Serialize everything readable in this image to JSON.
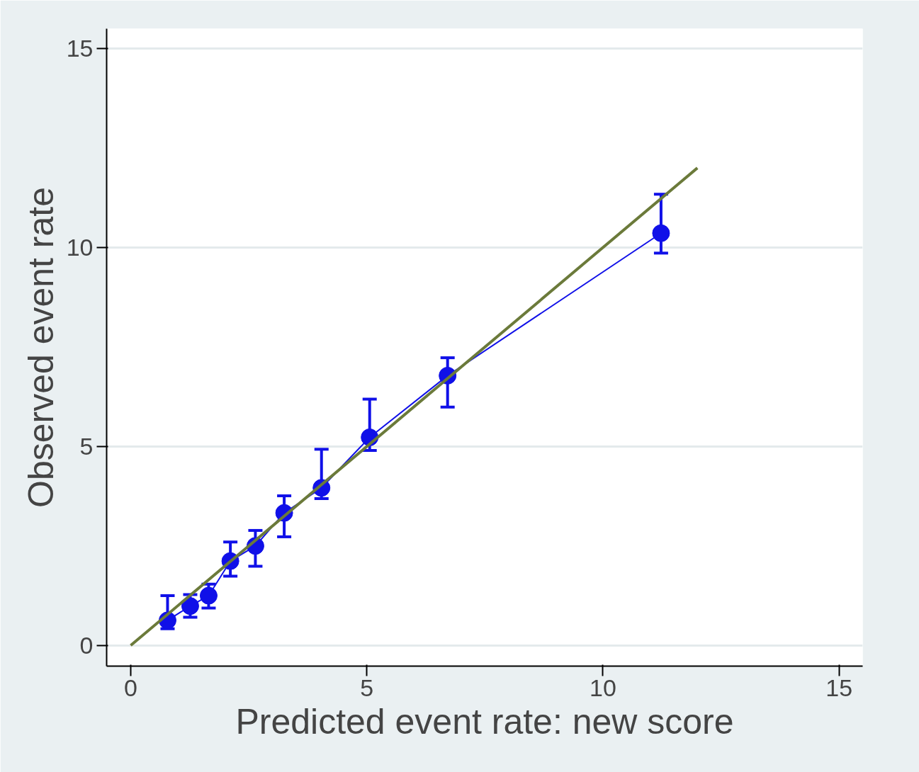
{
  "chart_data": {
    "type": "line",
    "xlabel": "Predicted event rate: new score",
    "ylabel": "Observed event rate",
    "xlim": [
      -0.51,
      15.5
    ],
    "ylim": [
      -0.52,
      15.5
    ],
    "xticks": [
      0,
      5,
      10,
      15
    ],
    "yticks": [
      0,
      5,
      10,
      15
    ],
    "grid": "y",
    "series": [
      {
        "marker": "circle",
        "color": "#1010e8",
        "x": [
          0.78,
          1.26,
          1.65,
          2.11,
          2.64,
          3.25,
          4.04,
          5.06,
          6.71,
          11.23
        ],
        "values": [
          0.63,
          0.99,
          1.25,
          2.12,
          2.5,
          3.33,
          3.96,
          5.23,
          6.78,
          10.36
        ],
        "errors": [
          [
            0.42,
            1.25
          ],
          [
            0.71,
            1.28
          ],
          [
            0.94,
            1.54
          ],
          [
            1.74,
            2.6
          ],
          [
            1.99,
            2.89
          ],
          [
            2.73,
            3.76
          ],
          [
            3.69,
            4.93
          ],
          [
            4.9,
            6.19
          ],
          [
            5.99,
            7.23
          ],
          [
            9.86,
            11.34
          ]
        ]
      },
      {
        "marker": "none",
        "color": "#6b7a3a",
        "x": [
          0,
          12
        ],
        "values": [
          0,
          12
        ]
      }
    ]
  }
}
